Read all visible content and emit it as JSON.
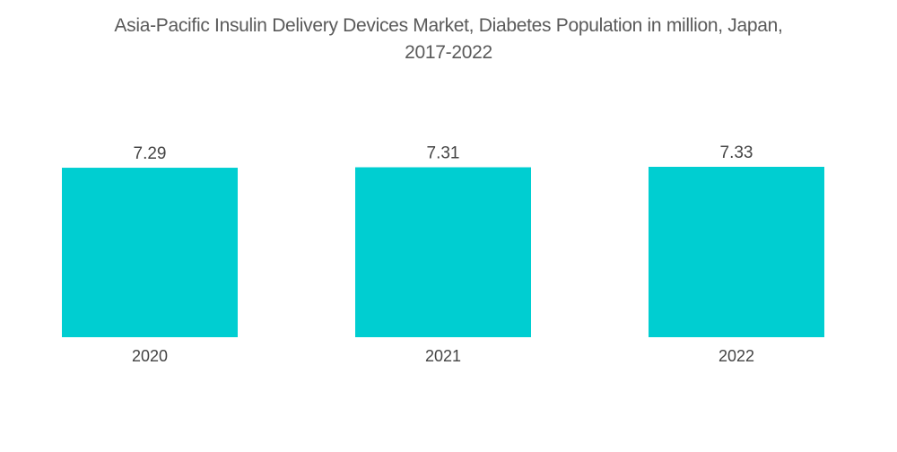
{
  "chart_data": {
    "type": "bar",
    "title_line1": "Asia-Pacific Insulin Delivery Devices Market, Diabetes Population in million, Japan,",
    "title_line2": "2017-2022",
    "categories": [
      "2020",
      "2021",
      "2022"
    ],
    "values": [
      7.29,
      7.31,
      7.33
    ],
    "value_labels": [
      "7.29",
      "7.31",
      "7.33"
    ],
    "xlabel": "",
    "ylabel": "",
    "ylim": [
      0,
      7.33
    ],
    "grid": false,
    "legend": "none",
    "colors": {
      "bar": "#00ced1",
      "text": "#444444",
      "title": "#5a5a5a"
    }
  }
}
